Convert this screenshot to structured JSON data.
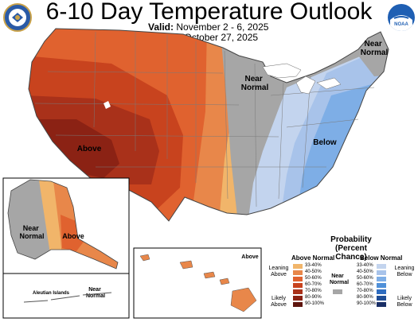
{
  "header": {
    "title": "6-10 Day Temperature Outlook",
    "valid_label": "Valid:",
    "valid_value": "November 2 - 6, 2025",
    "issued_label": "Issued:",
    "issued_value": "October 27, 2025"
  },
  "logos": {
    "left": "doc-seal-icon",
    "right": "noaa-logo-icon"
  },
  "regions": {
    "west": "Above",
    "east": "Below",
    "central": "Near Normal",
    "northeast": "Near Normal",
    "alaska_west": "Near Normal",
    "alaska_east": "Above",
    "hawaii": "Above",
    "aleutian_title": "Aleutian Islands",
    "aleutian_value": "Near Normal"
  },
  "legend": {
    "title": "Probability (Percent Chance)",
    "above_head": "Above Normal",
    "below_head": "Below Normal",
    "near_head": "Near Normal",
    "leaning_above": "Leaning Above",
    "likely_above": "Likely Above",
    "leaning_below": "Leaning Below",
    "likely_below": "Likely Below",
    "bins": [
      "33-40%",
      "40-50%",
      "50-60%",
      "60-70%",
      "70-80%",
      "80-90%",
      "90-100%"
    ],
    "above_colors": [
      "#f1b56a",
      "#e8874a",
      "#e0622f",
      "#c8431e",
      "#a9311a",
      "#8b2214",
      "#5e150e"
    ],
    "below_colors": [
      "#c3d4ee",
      "#a8c3ea",
      "#7eaee6",
      "#4f90d8",
      "#2e6cc0",
      "#1f4d95",
      "#1a2f66"
    ],
    "near_color": "#a6a6a6"
  }
}
